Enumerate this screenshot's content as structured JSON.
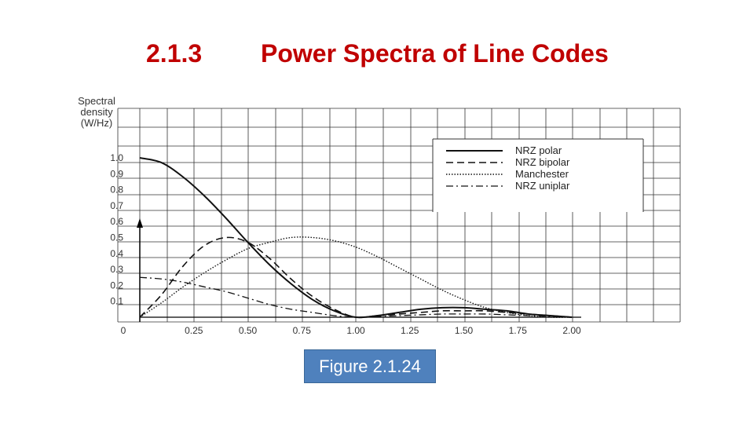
{
  "slide": {
    "section_number": "2.1.3",
    "title": "Power Spectra of Line Codes",
    "caption": "Figure 2.1.24",
    "title_color": "#c00000",
    "caption_bg": "#4f81bd"
  },
  "chart_data": {
    "type": "line",
    "ylabel": [
      "Spectral",
      "density",
      "(W/Hz)"
    ],
    "xlim": [
      0,
      2.25
    ],
    "ylim": [
      0,
      1.0
    ],
    "x_ticks": [
      "0",
      "0.25",
      "0.50",
      "0.75",
      "1.00",
      "1.25",
      "1.50",
      "1.75",
      "2.00"
    ],
    "y_ticks": [
      "1.0",
      "0.9",
      "0.8",
      "0.7",
      "0.6",
      "0.5",
      "0.4",
      "0.3",
      "0.2",
      "0.1"
    ],
    "grid": true,
    "legend_position": "top-right",
    "series": [
      {
        "name": "NRZ polar",
        "style": "solid",
        "x": [
          0,
          0.1,
          0.2,
          0.3,
          0.4,
          0.5,
          0.6,
          0.7,
          0.8,
          0.9,
          1.0,
          1.1,
          1.2,
          1.3,
          1.4,
          1.5,
          1.6,
          1.7,
          1.8,
          1.9,
          2.0
        ],
        "y": [
          1.0,
          0.97,
          0.88,
          0.76,
          0.62,
          0.47,
          0.33,
          0.21,
          0.11,
          0.04,
          0.0,
          0.01,
          0.03,
          0.05,
          0.06,
          0.06,
          0.05,
          0.04,
          0.02,
          0.01,
          0.0
        ]
      },
      {
        "name": "NRZ bipolar",
        "style": "dashed",
        "x": [
          0,
          0.1,
          0.2,
          0.3,
          0.4,
          0.5,
          0.6,
          0.7,
          0.8,
          0.9,
          1.0,
          1.1,
          1.2,
          1.3,
          1.4,
          1.5,
          1.6,
          1.7,
          1.8,
          1.9,
          2.0
        ],
        "y": [
          0.0,
          0.14,
          0.32,
          0.45,
          0.5,
          0.47,
          0.37,
          0.24,
          0.13,
          0.05,
          0.0,
          0.01,
          0.02,
          0.03,
          0.04,
          0.04,
          0.04,
          0.03,
          0.02,
          0.01,
          0.0
        ]
      },
      {
        "name": "Manchester",
        "style": "dotted",
        "x": [
          0,
          0.1,
          0.2,
          0.3,
          0.4,
          0.5,
          0.6,
          0.7,
          0.8,
          0.9,
          1.0,
          1.1,
          1.2,
          1.3,
          1.4,
          1.5,
          1.6,
          1.7,
          1.8,
          1.9,
          2.0
        ],
        "y": [
          0.0,
          0.09,
          0.19,
          0.28,
          0.36,
          0.43,
          0.47,
          0.5,
          0.5,
          0.48,
          0.44,
          0.38,
          0.31,
          0.24,
          0.17,
          0.11,
          0.06,
          0.03,
          0.01,
          0.0,
          0.0
        ]
      },
      {
        "name": "NRZ uniplar",
        "style": "dashdot",
        "x": [
          0,
          0.1,
          0.2,
          0.3,
          0.4,
          0.5,
          0.6,
          0.7,
          0.8,
          0.9,
          1.0,
          1.1,
          1.2,
          1.3,
          1.4,
          1.5,
          1.6,
          1.7,
          1.8,
          1.9,
          2.0
        ],
        "y": [
          0.25,
          0.24,
          0.22,
          0.19,
          0.16,
          0.12,
          0.08,
          0.05,
          0.03,
          0.01,
          0.0,
          0.005,
          0.01,
          0.015,
          0.02,
          0.02,
          0.02,
          0.015,
          0.01,
          0.005,
          0.0
        ]
      }
    ]
  }
}
